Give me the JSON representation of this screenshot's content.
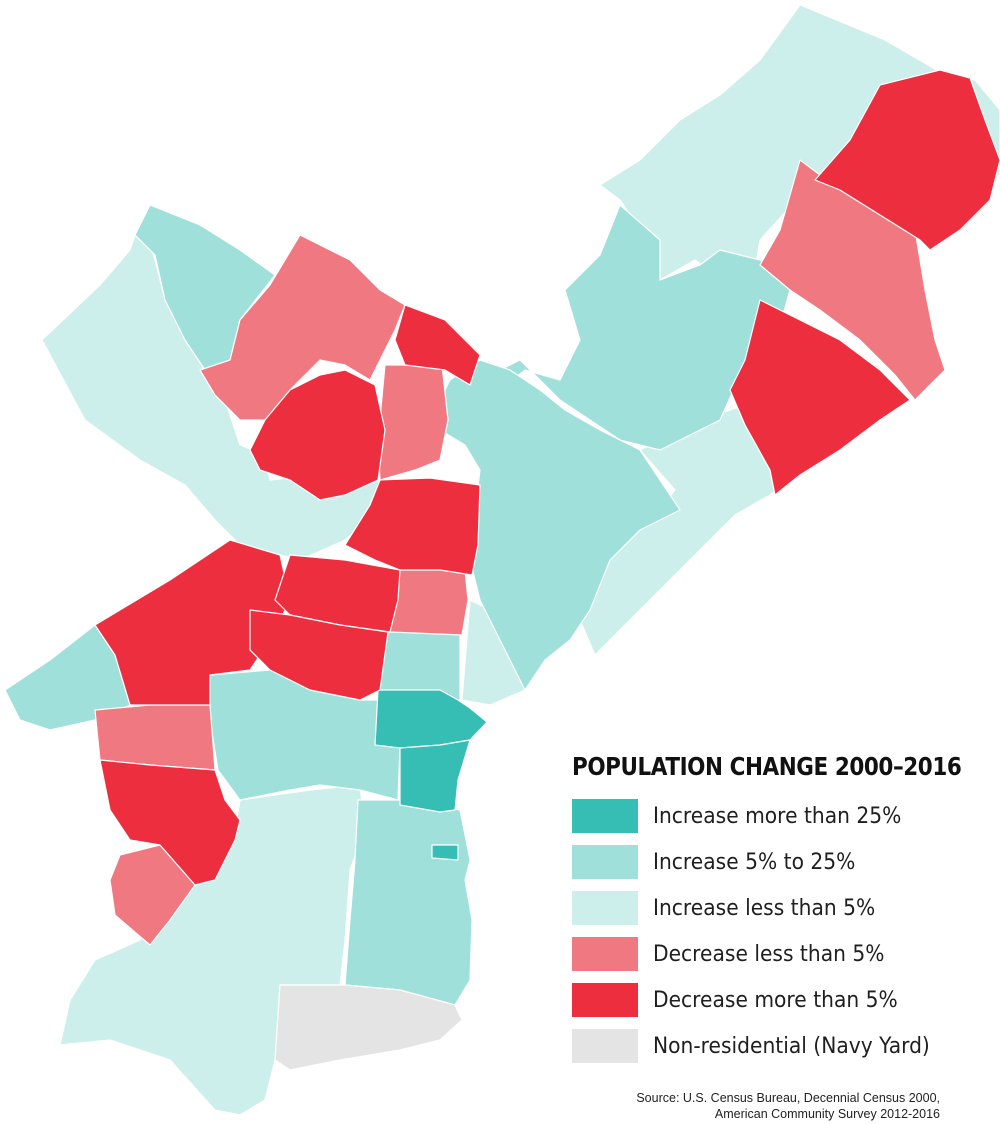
{
  "colors": {
    "increase_gt_25": "#36bdb4",
    "increase_5_25": "#9fe0db",
    "increase_lt_5": "#cdefeb",
    "decrease_lt_5": "#f07880",
    "decrease_gt_5": "#ec2e3f",
    "non_residential": "#e4e4e4"
  },
  "legend": {
    "title": "POPULATION CHANGE 2000–2016",
    "items": [
      {
        "label": "Increase more than 25%",
        "color": "#36bdb4"
      },
      {
        "label": "Increase 5% to 25%",
        "color": "#9fe0db"
      },
      {
        "label": "Increase less than 5%",
        "color": "#cdefeb"
      },
      {
        "label": "Decrease less than 5%",
        "color": "#f07880"
      },
      {
        "label": "Decrease more than 5%",
        "color": "#ec2e3f"
      },
      {
        "label": "Non-residential (Navy Yard)",
        "color": "#e4e4e4"
      }
    ]
  },
  "source": {
    "line1": "Source: U.S. Census Bureau, Decennial Census 2000,",
    "line2": "American Community Survey 2012-2016"
  }
}
